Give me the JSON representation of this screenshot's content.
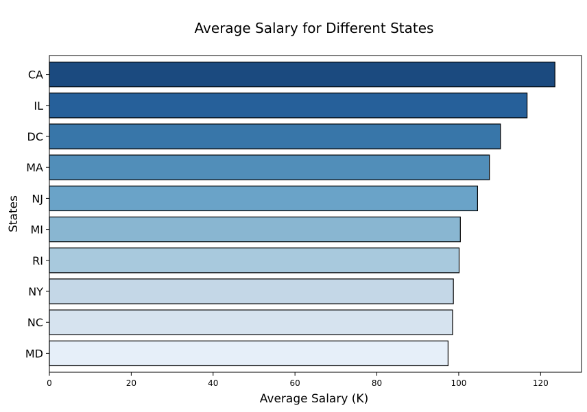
{
  "chart_data": {
    "type": "bar",
    "orientation": "horizontal",
    "title": "Average Salary for Different States",
    "xlabel": "Average Salary (K)",
    "ylabel": "States",
    "categories": [
      "CA",
      "IL",
      "DC",
      "MA",
      "NJ",
      "MI",
      "RI",
      "NY",
      "NC",
      "MD"
    ],
    "values": [
      123.5,
      116.7,
      110.2,
      107.5,
      104.6,
      100.4,
      100.1,
      98.7,
      98.5,
      97.4
    ],
    "xlim": [
      0,
      130
    ],
    "xticks": [
      "0",
      "20",
      "40",
      "60",
      "80",
      "100",
      "120"
    ],
    "grid": false,
    "colors": [
      "#1b4a7f",
      "#26609a",
      "#3876a9",
      "#518eb9",
      "#6aa3c8",
      "#89b6d1",
      "#a8c9dd",
      "#c4d7e7",
      "#d6e3ef",
      "#e6eff9"
    ],
    "edge_color": "#000000"
  }
}
